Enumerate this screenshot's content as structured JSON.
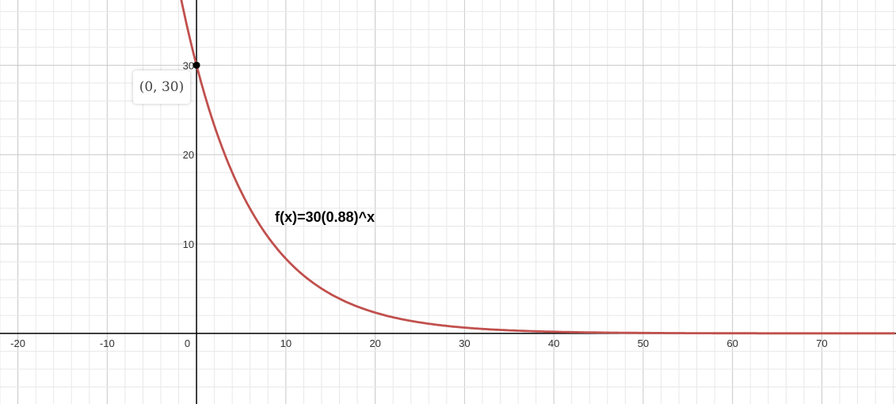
{
  "chart_data": {
    "type": "line",
    "title": "",
    "xlabel": "",
    "ylabel": "",
    "function": "f(x)=30(0.88)^x",
    "a": 30,
    "b": 0.88,
    "xlim": [
      -22,
      78.3
    ],
    "ylim": [
      -7.9,
      37.3
    ],
    "grid": true,
    "major_step": 10,
    "minor_step": 2,
    "x_ticks": [
      -20,
      -10,
      0,
      10,
      20,
      30,
      40,
      50,
      60,
      70
    ],
    "y_ticks": [
      10,
      20,
      30
    ],
    "highlighted_point": {
      "x": 0,
      "y": 30,
      "label": "(0, 30)"
    },
    "series": [
      {
        "label": "f(x)=30(0.88)^x",
        "color": "#c0504d"
      }
    ],
    "colors": {
      "curve": "#c0504d",
      "axis": "#000000",
      "major_grid": "#c8c8c8",
      "minor_grid": "#e8e8e8"
    }
  }
}
